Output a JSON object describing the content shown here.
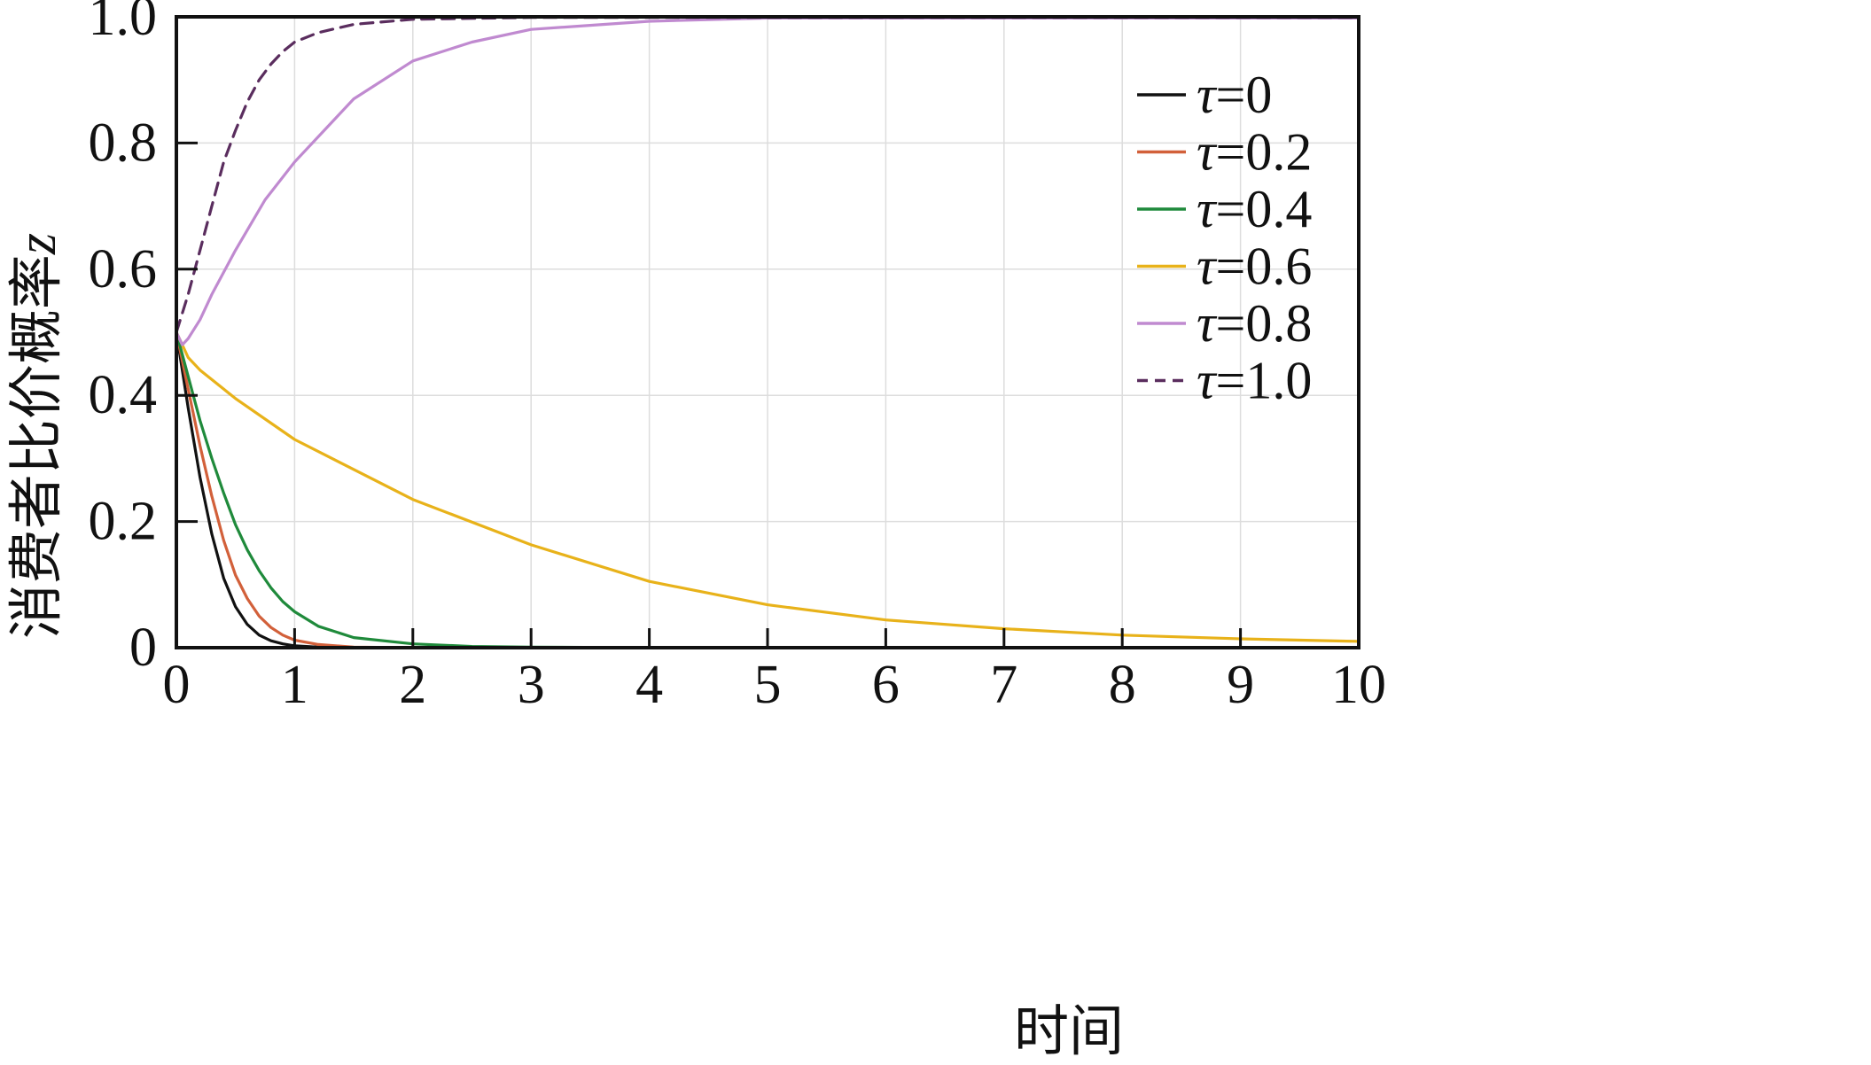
{
  "chart_data": {
    "type": "line",
    "title": "",
    "xlabel": "时间",
    "ylabel": "消费者比价概率",
    "ylabel_var": "z",
    "xlim": [
      0,
      10
    ],
    "ylim": [
      0,
      1
    ],
    "x_ticks": [
      "0",
      "1",
      "2",
      "3",
      "4",
      "5",
      "6",
      "7",
      "8",
      "9",
      "10"
    ],
    "y_ticks": [
      "0",
      "0.2",
      "0.4",
      "0.6",
      "0.8",
      "1.0"
    ],
    "grid": true,
    "legend_position": "right",
    "series": [
      {
        "name": "τ=0",
        "name_sym": "τ",
        "name_val": "=0",
        "color": "#111111",
        "dash": "solid",
        "x": [
          0,
          0.1,
          0.2,
          0.3,
          0.4,
          0.5,
          0.6,
          0.7,
          0.8,
          0.9,
          1.0,
          1.2,
          1.5,
          2.0,
          3,
          10
        ],
        "y": [
          0.5,
          0.38,
          0.27,
          0.18,
          0.11,
          0.065,
          0.037,
          0.02,
          0.011,
          0.006,
          0.003,
          0.001,
          0.0,
          0.0,
          0.0,
          0.0
        ]
      },
      {
        "name": "τ=0.2",
        "name_sym": "τ",
        "name_val": "=0.2",
        "color": "#d2603a",
        "dash": "solid",
        "x": [
          0,
          0.1,
          0.2,
          0.3,
          0.4,
          0.5,
          0.6,
          0.7,
          0.8,
          0.9,
          1.0,
          1.2,
          1.5,
          2.0,
          3,
          10
        ],
        "y": [
          0.5,
          0.41,
          0.32,
          0.24,
          0.17,
          0.115,
          0.078,
          0.05,
          0.032,
          0.02,
          0.012,
          0.005,
          0.001,
          0.0,
          0.0,
          0.0
        ]
      },
      {
        "name": "τ=0.4",
        "name_sym": "τ",
        "name_val": "=0.4",
        "color": "#1f8a3b",
        "dash": "solid",
        "x": [
          0,
          0.1,
          0.2,
          0.3,
          0.4,
          0.5,
          0.6,
          0.7,
          0.8,
          0.9,
          1.0,
          1.2,
          1.5,
          2.0,
          2.5,
          3,
          4,
          10
        ],
        "y": [
          0.5,
          0.43,
          0.36,
          0.3,
          0.245,
          0.195,
          0.155,
          0.122,
          0.095,
          0.073,
          0.057,
          0.034,
          0.016,
          0.006,
          0.002,
          0.001,
          0.0,
          0.0
        ]
      },
      {
        "name": "τ=0.6",
        "name_sym": "τ",
        "name_val": "=0.6",
        "color": "#e8b21a",
        "dash": "solid",
        "x": [
          0,
          0.05,
          0.1,
          0.2,
          0.3,
          0.5,
          1,
          2,
          3,
          4,
          5,
          6,
          7,
          8,
          9,
          10
        ],
        "y": [
          0.5,
          0.48,
          0.46,
          0.44,
          0.425,
          0.395,
          0.33,
          0.235,
          0.163,
          0.105,
          0.068,
          0.044,
          0.03,
          0.02,
          0.014,
          0.01
        ]
      },
      {
        "name": "τ=0.8",
        "name_sym": "τ",
        "name_val": "=0.8",
        "color": "#c08ad0",
        "dash": "solid",
        "x": [
          0,
          0.05,
          0.1,
          0.2,
          0.3,
          0.5,
          0.75,
          1,
          1.5,
          2,
          2.5,
          3,
          4,
          5,
          10
        ],
        "y": [
          0.5,
          0.48,
          0.49,
          0.52,
          0.56,
          0.63,
          0.71,
          0.77,
          0.87,
          0.93,
          0.96,
          0.98,
          0.993,
          0.998,
          0.998
        ]
      },
      {
        "name": "τ=1.0",
        "name_sym": "τ",
        "name_val": "=1.0",
        "color": "#5a2d5e",
        "dash": "dashed",
        "x": [
          0,
          0.1,
          0.2,
          0.3,
          0.4,
          0.5,
          0.6,
          0.7,
          0.8,
          0.9,
          1.0,
          1.2,
          1.5,
          2,
          3,
          10
        ],
        "y": [
          0.5,
          0.56,
          0.63,
          0.7,
          0.77,
          0.82,
          0.865,
          0.9,
          0.925,
          0.945,
          0.96,
          0.975,
          0.988,
          0.996,
          0.999,
          0.999
        ]
      }
    ]
  }
}
